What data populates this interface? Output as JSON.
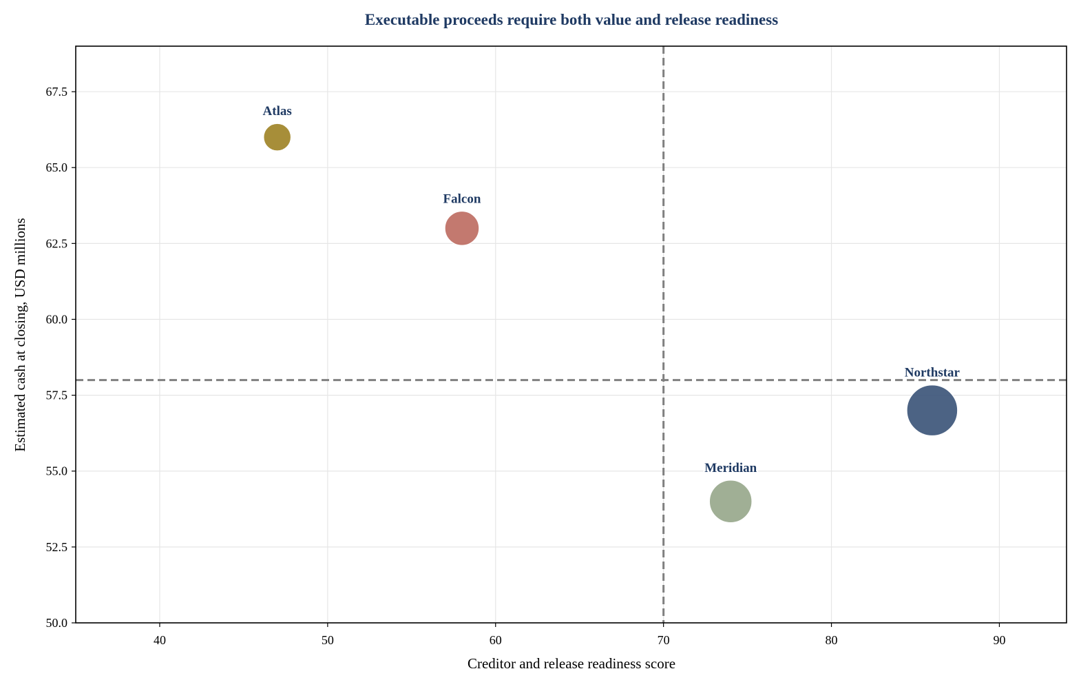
{
  "chart_data": {
    "type": "scatter",
    "title": "Executable proceeds require both value and release readiness",
    "xlabel": "Creditor and release readiness score",
    "ylabel": "Estimated cash at closing, USD millions",
    "xlim": [
      35,
      94
    ],
    "ylim": [
      50,
      69
    ],
    "xticks": [
      40,
      50,
      60,
      70,
      80,
      90
    ],
    "yticks": [
      50.0,
      52.5,
      55.0,
      57.5,
      60.0,
      62.5,
      65.0,
      67.5
    ],
    "xtick_labels": [
      "40",
      "50",
      "60",
      "70",
      "80",
      "90"
    ],
    "ytick_labels": [
      "50.0",
      "52.5",
      "55.0",
      "57.5",
      "60.0",
      "62.5",
      "65.0",
      "67.5"
    ],
    "grid": true,
    "reference_lines": {
      "x": 70,
      "y": 58
    },
    "points": [
      {
        "label": "Atlas",
        "x": 47,
        "y": 66,
        "size": 1,
        "color": "#A08428"
      },
      {
        "label": "Falcon",
        "x": 58,
        "y": 63,
        "size": 1.25,
        "color": "#BE6E63"
      },
      {
        "label": "Meridian",
        "x": 74,
        "y": 54,
        "size": 1.55,
        "color": "#98A88C"
      },
      {
        "label": "Northstar",
        "x": 86,
        "y": 57,
        "size": 1.85,
        "color": "#3D5679"
      }
    ]
  },
  "colors": {
    "title": "#1F3A63",
    "point_label": "#1F3A63",
    "reference_line": "#808080",
    "grid": "#E6E6E6",
    "axes": "#000000"
  }
}
